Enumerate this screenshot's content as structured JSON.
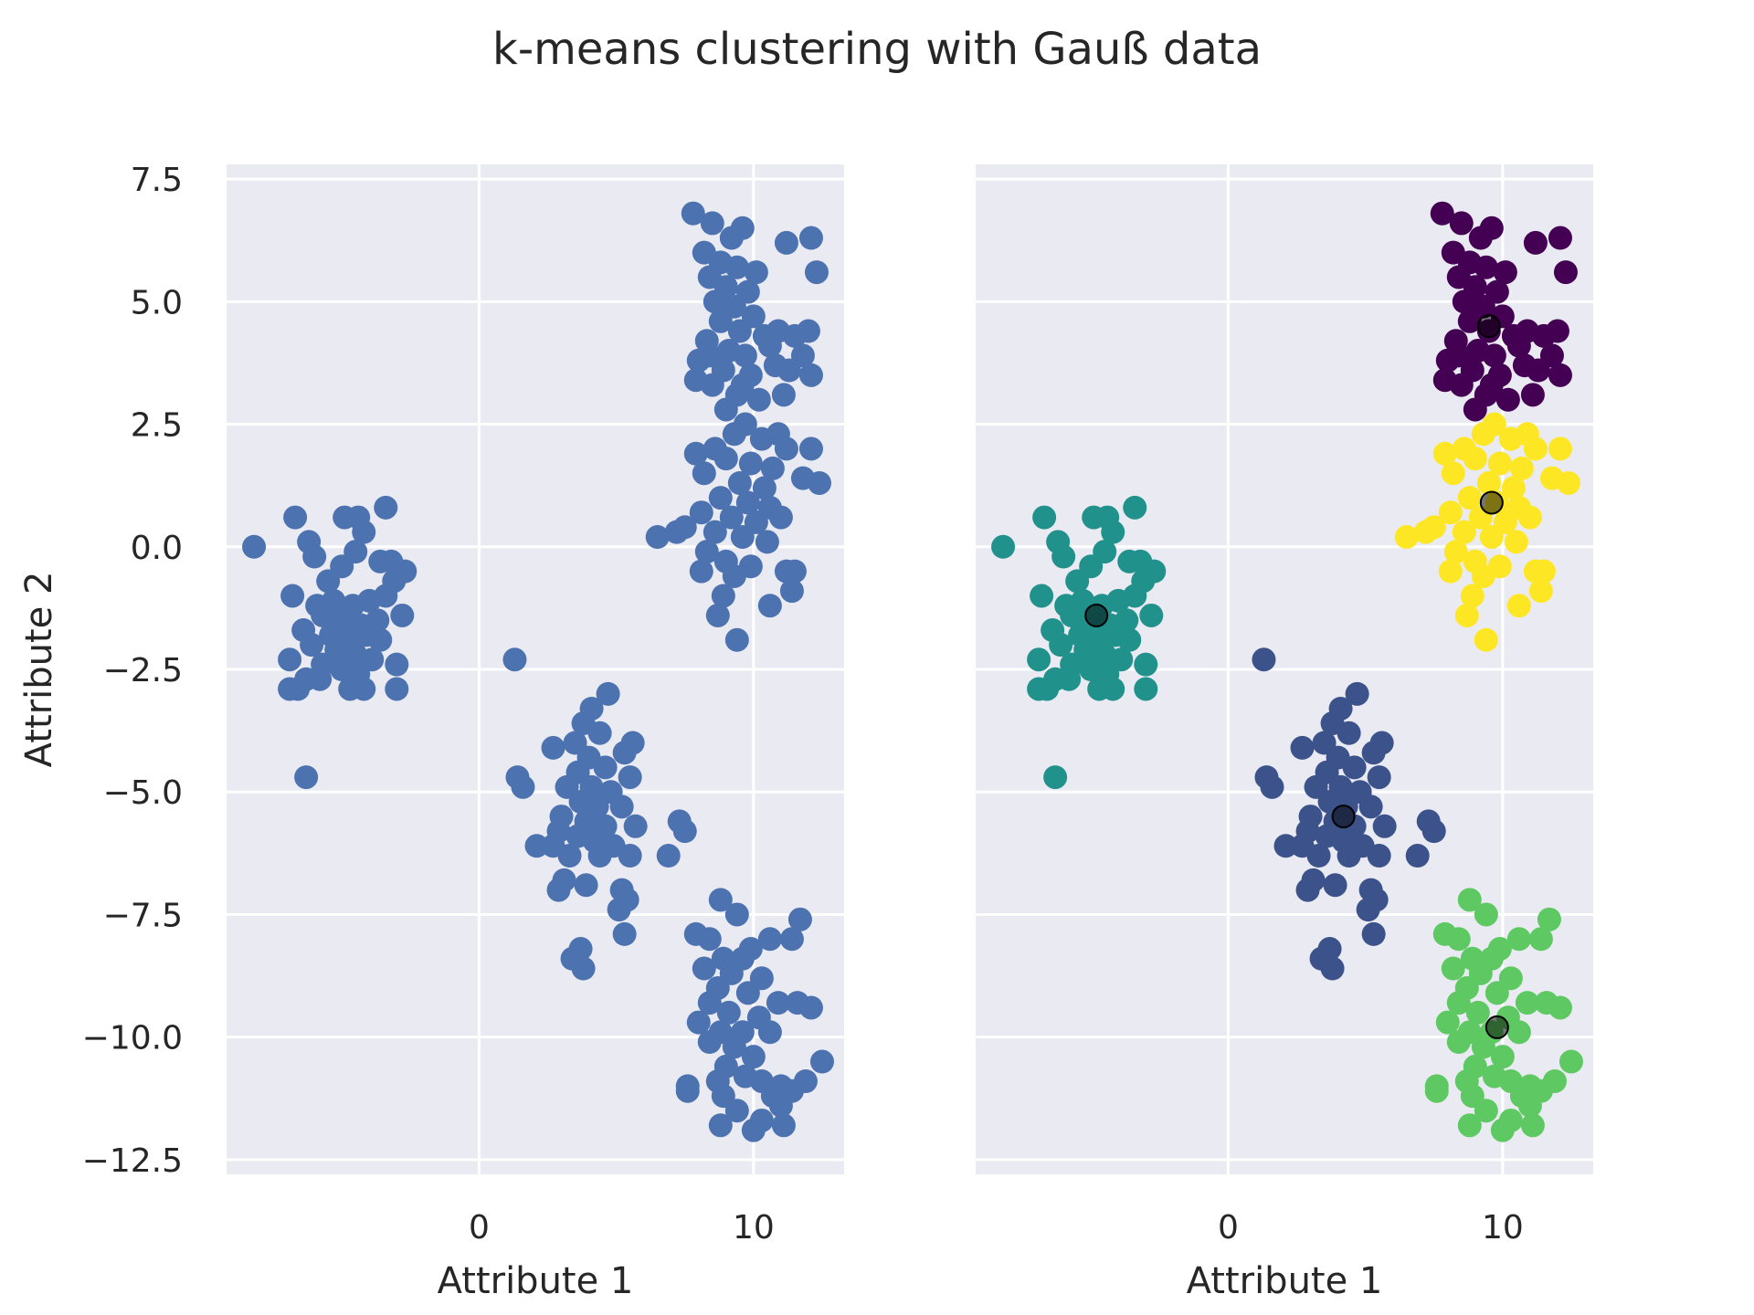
{
  "chart_data": {
    "suptitle": "k-means clustering with Gauß data",
    "type": "scatter",
    "style": {
      "background": "#eaeaf2",
      "grid_color": "#ffffff",
      "grid": true
    },
    "panels": [
      {
        "name": "raw",
        "xlabel": "Attribute 1",
        "ylabel": "Attribute 2",
        "xlim": [
          -9.2,
          13.3
        ],
        "ylim": [
          -12.8,
          7.8
        ],
        "xticks": [
          0,
          10
        ],
        "yticks": [
          7.5,
          5.0,
          2.5,
          0.0,
          -2.5,
          -5.0,
          -7.5,
          -10.0,
          -12.5
        ],
        "ytick_labels": [
          "7.5",
          "5.0",
          "2.5",
          "0.0",
          "−2.5",
          "−5.0",
          "−7.5",
          "−10.0",
          "−12.5"
        ],
        "point_color": "#4c72b0"
      },
      {
        "name": "clustered",
        "xlabel": "Attribute 1",
        "ylabel": "",
        "xlim": [
          -9.2,
          13.3
        ],
        "ylim": [
          -12.8,
          7.8
        ],
        "xticks": [
          0,
          10
        ],
        "yticks": [],
        "centroids": [
          [
            9.5,
            4.5
          ],
          [
            4.2,
            -5.5
          ],
          [
            -4.8,
            -1.4
          ],
          [
            9.8,
            -9.8
          ],
          [
            9.6,
            0.9
          ]
        ],
        "centroid_color": "#000000"
      }
    ],
    "clusters": [
      {
        "color": "#440154",
        "points": [
          [
            7.8,
            6.8
          ],
          [
            8.5,
            6.6
          ],
          [
            9.2,
            6.3
          ],
          [
            9.6,
            6.5
          ],
          [
            8.2,
            6.0
          ],
          [
            8.8,
            5.8
          ],
          [
            9.4,
            5.7
          ],
          [
            10.1,
            5.6
          ],
          [
            8.4,
            5.5
          ],
          [
            9.0,
            5.3
          ],
          [
            9.8,
            5.2
          ],
          [
            8.6,
            5.0
          ],
          [
            9.3,
            4.9
          ],
          [
            10.0,
            4.7
          ],
          [
            8.8,
            4.6
          ],
          [
            9.5,
            4.4
          ],
          [
            10.4,
            4.3
          ],
          [
            8.3,
            4.2
          ],
          [
            9.1,
            4.0
          ],
          [
            10.6,
            4.1
          ],
          [
            9.7,
            3.9
          ],
          [
            8.0,
            3.8
          ],
          [
            8.9,
            3.6
          ],
          [
            9.9,
            3.5
          ],
          [
            10.8,
            3.7
          ],
          [
            8.5,
            3.3
          ],
          [
            9.4,
            3.1
          ],
          [
            10.2,
            3.0
          ],
          [
            9.0,
            2.8
          ],
          [
            11.1,
            3.1
          ],
          [
            11.5,
            4.3
          ],
          [
            12.0,
            4.4
          ],
          [
            11.8,
            3.9
          ],
          [
            12.1,
            3.5
          ],
          [
            11.2,
            6.2
          ],
          [
            12.1,
            6.3
          ],
          [
            12.3,
            5.6
          ],
          [
            11.3,
            3.6
          ],
          [
            10.9,
            4.4
          ],
          [
            7.9,
            3.4
          ],
          [
            8.4,
            3.9
          ],
          [
            9.6,
            3.3
          ]
        ]
      },
      {
        "color": "#fde725",
        "points": [
          [
            9.7,
            2.5
          ],
          [
            9.3,
            2.3
          ],
          [
            10.3,
            2.2
          ],
          [
            8.6,
            2.0
          ],
          [
            11.2,
            2.0
          ],
          [
            12.1,
            2.0
          ],
          [
            9.0,
            1.8
          ],
          [
            9.9,
            1.7
          ],
          [
            10.7,
            1.6
          ],
          [
            8.2,
            1.5
          ],
          [
            9.5,
            1.3
          ],
          [
            10.4,
            1.2
          ],
          [
            11.8,
            1.4
          ],
          [
            12.4,
            1.3
          ],
          [
            8.8,
            1.0
          ],
          [
            9.8,
            0.9
          ],
          [
            10.6,
            0.8
          ],
          [
            8.1,
            0.7
          ],
          [
            9.2,
            0.6
          ],
          [
            10.1,
            0.5
          ],
          [
            11.0,
            0.6
          ],
          [
            8.6,
            0.3
          ],
          [
            9.6,
            0.2
          ],
          [
            10.5,
            0.1
          ],
          [
            7.5,
            0.4
          ],
          [
            6.5,
            0.2
          ],
          [
            7.2,
            0.3
          ],
          [
            8.3,
            -0.1
          ],
          [
            9.0,
            -0.3
          ],
          [
            9.9,
            -0.4
          ],
          [
            11.2,
            -0.5
          ],
          [
            11.5,
            -0.5
          ],
          [
            8.1,
            -0.5
          ],
          [
            9.3,
            -0.6
          ],
          [
            8.9,
            -1.0
          ],
          [
            11.4,
            -0.9
          ],
          [
            10.6,
            -1.2
          ],
          [
            8.7,
            -1.4
          ],
          [
            9.4,
            -1.9
          ],
          [
            7.9,
            1.9
          ],
          [
            10.9,
            2.3
          ]
        ]
      },
      {
        "color": "#21918c",
        "points": [
          [
            -8.2,
            0.0
          ],
          [
            -6.7,
            0.6
          ],
          [
            -6.2,
            0.1
          ],
          [
            -6.0,
            -0.2
          ],
          [
            -4.9,
            0.6
          ],
          [
            -4.4,
            0.6
          ],
          [
            -3.4,
            0.8
          ],
          [
            -4.2,
            0.3
          ],
          [
            -4.5,
            -0.1
          ],
          [
            -5.0,
            -0.4
          ],
          [
            -3.6,
            -0.3
          ],
          [
            -3.2,
            -0.3
          ],
          [
            -2.7,
            -0.5
          ],
          [
            -3.1,
            -0.7
          ],
          [
            -5.5,
            -0.7
          ],
          [
            -6.8,
            -1.0
          ],
          [
            -5.9,
            -1.2
          ],
          [
            -5.3,
            -1.1
          ],
          [
            -4.6,
            -1.2
          ],
          [
            -4.0,
            -1.1
          ],
          [
            -3.4,
            -1.0
          ],
          [
            -5.7,
            -1.4
          ],
          [
            -5.0,
            -1.5
          ],
          [
            -4.3,
            -1.6
          ],
          [
            -3.7,
            -1.5
          ],
          [
            -2.8,
            -1.4
          ],
          [
            -6.4,
            -1.7
          ],
          [
            -5.4,
            -1.8
          ],
          [
            -4.8,
            -1.9
          ],
          [
            -4.1,
            -1.8
          ],
          [
            -3.6,
            -1.9
          ],
          [
            -6.1,
            -2.0
          ],
          [
            -5.2,
            -2.1
          ],
          [
            -4.5,
            -2.2
          ],
          [
            -3.9,
            -2.3
          ],
          [
            -6.9,
            -2.3
          ],
          [
            -5.7,
            -2.4
          ],
          [
            -5.0,
            -2.5
          ],
          [
            -4.4,
            -2.6
          ],
          [
            -6.3,
            -2.7
          ],
          [
            -5.8,
            -2.7
          ],
          [
            -6.6,
            -2.9
          ],
          [
            -6.9,
            -2.9
          ],
          [
            -4.7,
            -2.9
          ],
          [
            -4.2,
            -2.9
          ],
          [
            -3.0,
            -2.4
          ],
          [
            -3.0,
            -2.9
          ],
          [
            -6.3,
            -4.7
          ]
        ]
      },
      {
        "color": "#3b528b",
        "points": [
          [
            1.3,
            -2.3
          ],
          [
            4.7,
            -3.0
          ],
          [
            4.1,
            -3.3
          ],
          [
            3.8,
            -3.6
          ],
          [
            4.4,
            -3.8
          ],
          [
            3.5,
            -4.0
          ],
          [
            5.6,
            -4.0
          ],
          [
            5.3,
            -4.2
          ],
          [
            2.7,
            -4.1
          ],
          [
            4.0,
            -4.3
          ],
          [
            4.6,
            -4.5
          ],
          [
            3.6,
            -4.6
          ],
          [
            1.4,
            -4.7
          ],
          [
            5.5,
            -4.7
          ],
          [
            1.6,
            -4.9
          ],
          [
            3.2,
            -4.9
          ],
          [
            4.1,
            -4.9
          ],
          [
            4.8,
            -5.0
          ],
          [
            3.7,
            -5.2
          ],
          [
            4.3,
            -5.3
          ],
          [
            5.2,
            -5.3
          ],
          [
            3.0,
            -5.5
          ],
          [
            3.9,
            -5.6
          ],
          [
            4.6,
            -5.7
          ],
          [
            5.7,
            -5.7
          ],
          [
            2.9,
            -5.8
          ],
          [
            3.6,
            -5.9
          ],
          [
            4.2,
            -6.0
          ],
          [
            7.3,
            -5.6
          ],
          [
            7.5,
            -5.8
          ],
          [
            2.1,
            -6.1
          ],
          [
            2.7,
            -6.1
          ],
          [
            4.9,
            -6.1
          ],
          [
            3.3,
            -6.3
          ],
          [
            4.4,
            -6.3
          ],
          [
            5.5,
            -6.3
          ],
          [
            6.9,
            -6.3
          ],
          [
            3.1,
            -6.8
          ],
          [
            3.9,
            -6.9
          ],
          [
            2.9,
            -7.0
          ],
          [
            5.2,
            -7.0
          ],
          [
            5.4,
            -7.2
          ],
          [
            5.1,
            -7.4
          ],
          [
            5.3,
            -7.9
          ],
          [
            3.7,
            -8.2
          ],
          [
            3.4,
            -8.4
          ],
          [
            3.8,
            -8.6
          ]
        ]
      },
      {
        "color": "#5ec962",
        "points": [
          [
            8.8,
            -7.2
          ],
          [
            9.4,
            -7.5
          ],
          [
            11.7,
            -7.6
          ],
          [
            7.9,
            -7.9
          ],
          [
            8.4,
            -8.0
          ],
          [
            10.6,
            -8.0
          ],
          [
            11.4,
            -8.0
          ],
          [
            9.9,
            -8.2
          ],
          [
            8.9,
            -8.4
          ],
          [
            9.6,
            -8.4
          ],
          [
            8.2,
            -8.6
          ],
          [
            9.2,
            -8.7
          ],
          [
            10.3,
            -8.8
          ],
          [
            8.7,
            -9.0
          ],
          [
            9.8,
            -9.1
          ],
          [
            8.4,
            -9.3
          ],
          [
            10.9,
            -9.3
          ],
          [
            11.6,
            -9.3
          ],
          [
            12.1,
            -9.4
          ],
          [
            9.1,
            -9.5
          ],
          [
            10.2,
            -9.6
          ],
          [
            8.0,
            -9.7
          ],
          [
            8.8,
            -9.9
          ],
          [
            9.6,
            -9.9
          ],
          [
            10.6,
            -9.9
          ],
          [
            8.4,
            -10.1
          ],
          [
            9.3,
            -10.2
          ],
          [
            10.0,
            -10.4
          ],
          [
            9.0,
            -10.6
          ],
          [
            9.7,
            -10.8
          ],
          [
            8.7,
            -10.9
          ],
          [
            10.3,
            -10.9
          ],
          [
            7.6,
            -11.0
          ],
          [
            7.6,
            -11.1
          ],
          [
            8.9,
            -11.2
          ],
          [
            11.0,
            -11.0
          ],
          [
            11.4,
            -11.1
          ],
          [
            11.9,
            -10.9
          ],
          [
            12.5,
            -10.5
          ],
          [
            10.7,
            -11.2
          ],
          [
            11.0,
            -11.4
          ],
          [
            9.4,
            -11.5
          ],
          [
            8.8,
            -11.8
          ],
          [
            10.3,
            -11.7
          ],
          [
            10.0,
            -11.9
          ],
          [
            11.1,
            -11.8
          ]
        ]
      }
    ]
  }
}
